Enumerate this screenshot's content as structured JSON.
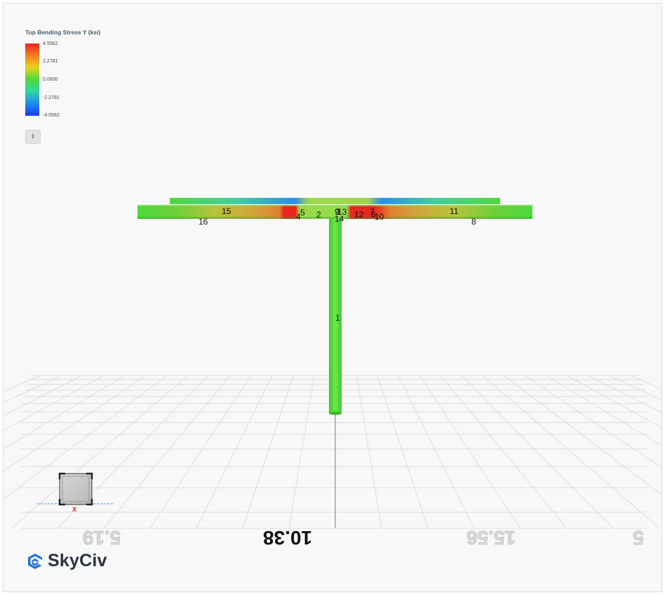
{
  "legend": {
    "title": "Top Bending Stress Y (ksi)",
    "values": [
      "4.5562",
      "2.2781",
      "0.0000",
      "-2.2781",
      "-4.5562"
    ],
    "colors": {
      "max": "#e8261f",
      "mid": "#4fd83c",
      "min": "#1a3cf0"
    },
    "toggle_icon": "up-down-arrows-icon"
  },
  "members": {
    "labels": [
      "1",
      "2",
      "3",
      "4",
      "5",
      "6",
      "7",
      "8",
      "9",
      "10",
      "11",
      "12",
      "13",
      "14",
      "15",
      "16"
    ]
  },
  "grid_axis": {
    "labels": [
      "5.19",
      "10.38",
      "15.56",
      "5"
    ]
  },
  "view_cube": {
    "axis_label": "X",
    "axis_color": "#e8261f"
  },
  "brand": {
    "name": "SkyCiv",
    "icon": "skyciv-logo-icon",
    "color": "#1f6fd6"
  }
}
